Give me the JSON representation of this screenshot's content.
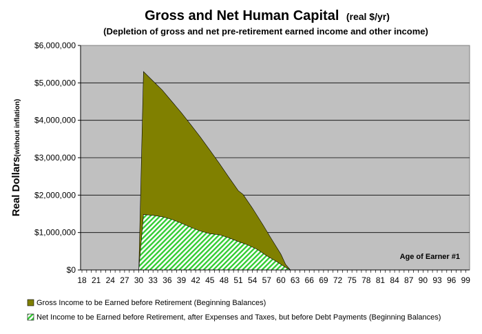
{
  "chart_data": {
    "type": "area",
    "title": "Gross and Net Human Capital",
    "title_suffix": "(real $/yr)",
    "subtitle": "(Depletion of gross and net pre-retirement earned income and other income)",
    "ylabel": "Real Dollars",
    "ylabel_suffix": "(without inflation)",
    "annotation": "Age of Earner #1",
    "ylim": [
      0,
      6000000
    ],
    "xlim": [
      18,
      100
    ],
    "y_ticks": [
      0,
      1000000,
      2000000,
      3000000,
      4000000,
      5000000,
      6000000
    ],
    "y_tick_labels": [
      "$0",
      "$1,000,000",
      "$2,000,000",
      "$3,000,000",
      "$4,000,000",
      "$5,000,000",
      "$6,000,000"
    ],
    "x_tick_labels": [
      "18",
      "21",
      "24",
      "27",
      "30",
      "33",
      "36",
      "39",
      "42",
      "45",
      "48",
      "51",
      "54",
      "57",
      "60",
      "63",
      "66",
      "69",
      "72",
      "75",
      "78",
      "81",
      "84",
      "87",
      "90",
      "93",
      "96",
      "99"
    ],
    "grid": "horizontal",
    "legend_position": "bottom",
    "colors": {
      "plot_background": "#c0c0c0",
      "gross_fill": "#808000",
      "net_fill": "#33cc33",
      "net_hatch_bg": "#ffffff"
    },
    "series": [
      {
        "name": "Gross Income to be Earned before Retirement (Beginning Balances)",
        "x": [
          30,
          31,
          33,
          35,
          37,
          39,
          41,
          43,
          45,
          47,
          49,
          51,
          52,
          54,
          56,
          58,
          60,
          61,
          62
        ],
        "values": [
          0,
          5300000,
          5050000,
          4800000,
          4500000,
          4200000,
          3880000,
          3550000,
          3200000,
          2850000,
          2480000,
          2120000,
          2020000,
          1650000,
          1250000,
          830000,
          420000,
          150000,
          0
        ]
      },
      {
        "name": "Net Income to be Earned before Retirement, after Expenses and Taxes, but before Debt Payments (Beginning Balances)",
        "x": [
          30,
          31,
          33,
          35,
          37,
          39,
          41,
          43,
          45,
          47,
          49,
          51,
          53,
          55,
          57,
          59,
          61,
          62
        ],
        "values": [
          0,
          1480000,
          1460000,
          1420000,
          1350000,
          1250000,
          1140000,
          1040000,
          970000,
          940000,
          860000,
          760000,
          670000,
          550000,
          380000,
          230000,
          70000,
          0
        ]
      }
    ]
  }
}
